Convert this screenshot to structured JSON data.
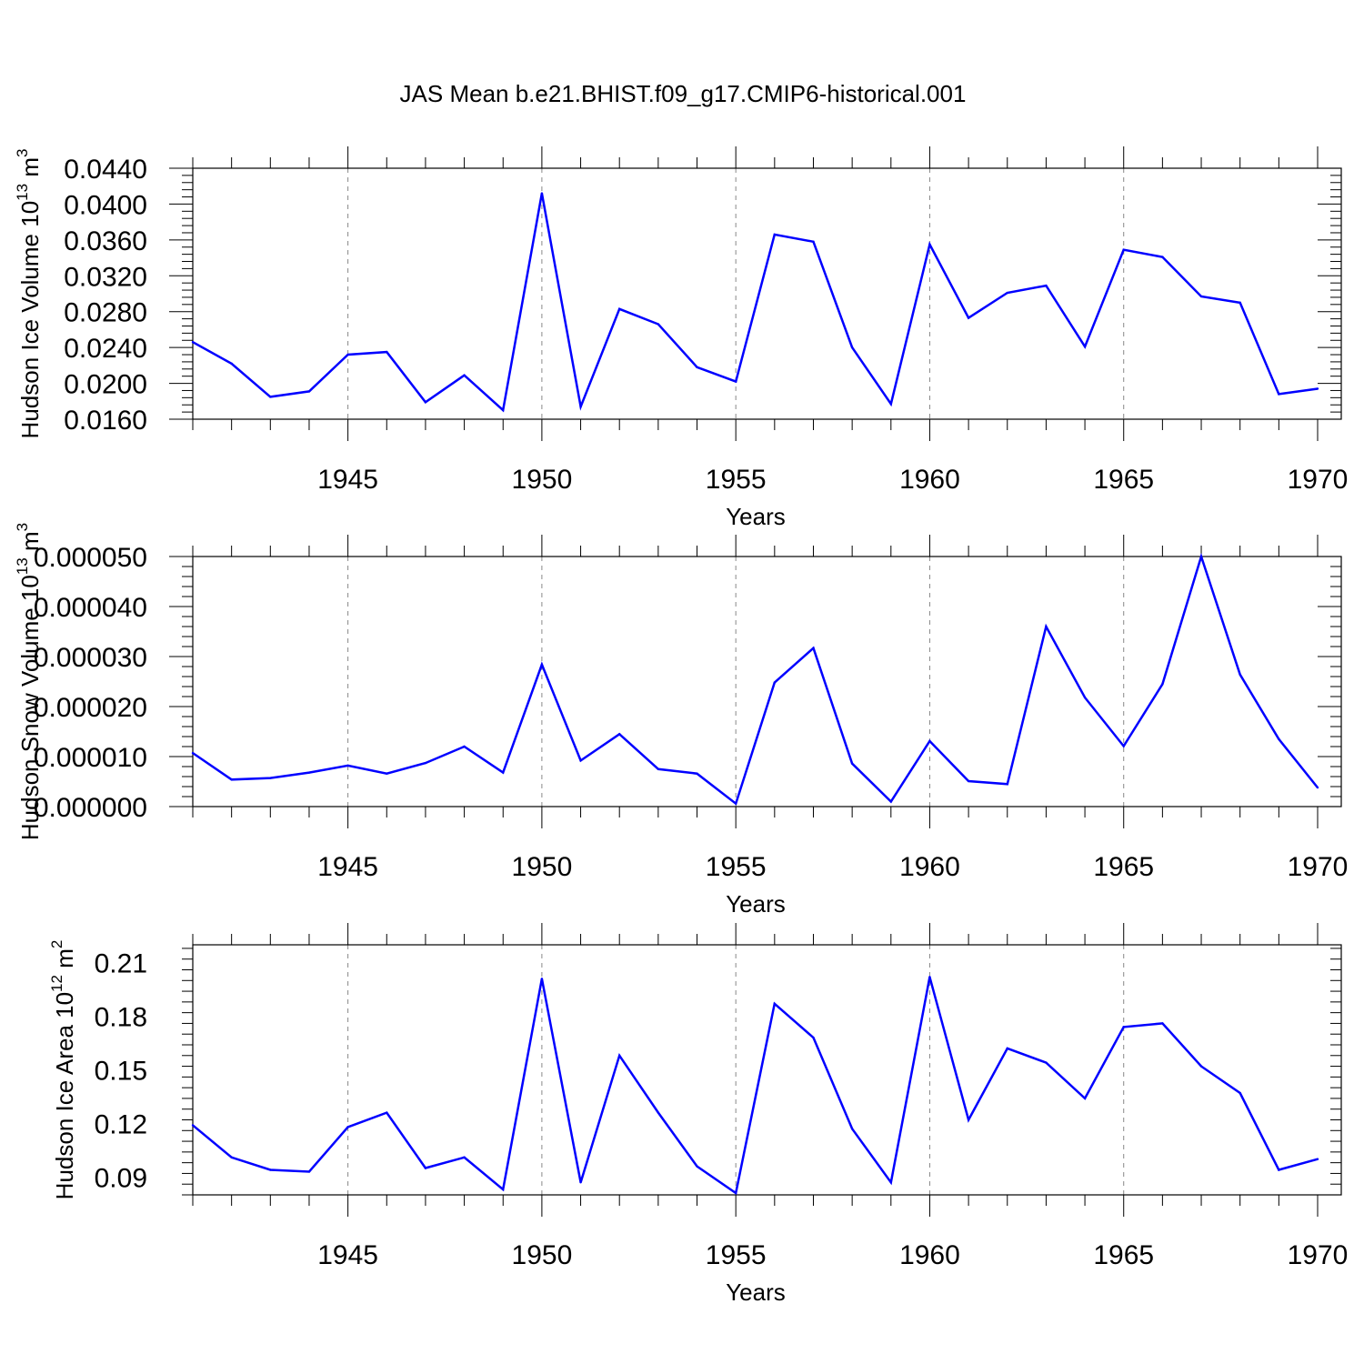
{
  "title": "JAS Mean b.e21.BHIST.f09_g17.CMIP6-historical.001",
  "colors": {
    "series": "#0000ff",
    "axis": "#000000",
    "grid": "#888888"
  },
  "chart_data": [
    {
      "type": "line",
      "ylabel": "Hudson Ice Volume 10",
      "ylabel_sup": "13",
      "ylabel_unit": "m",
      "ylabel_unit_sup": "3",
      "xlabel": "Years",
      "xlim": [
        1941,
        1970
      ],
      "ylim": [
        0.016,
        0.044
      ],
      "yticks": [
        0.016,
        0.02,
        0.024,
        0.028,
        0.032,
        0.036,
        0.04,
        0.044
      ],
      "ytick_labels": [
        "0.0160",
        "0.0200",
        "0.0240",
        "0.0280",
        "0.0320",
        "0.0360",
        "0.0400",
        "0.0440"
      ],
      "xticks": [
        1945,
        1950,
        1955,
        1960,
        1965,
        1970
      ],
      "xtick_labels": [
        "1945",
        "1950",
        "1955",
        "1960",
        "1965",
        "1970"
      ],
      "grid": "vertical dashed at major x ticks",
      "x": [
        1941,
        1942,
        1943,
        1944,
        1945,
        1946,
        1947,
        1948,
        1949,
        1950,
        1951,
        1952,
        1953,
        1954,
        1955,
        1956,
        1957,
        1958,
        1959,
        1960,
        1961,
        1962,
        1963,
        1964,
        1965,
        1966,
        1967,
        1968,
        1969,
        1970
      ],
      "y": [
        0.0246,
        0.0222,
        0.0185,
        0.0191,
        0.0232,
        0.0235,
        0.0179,
        0.0209,
        0.017,
        0.0412,
        0.0174,
        0.0283,
        0.0266,
        0.0218,
        0.0202,
        0.0366,
        0.0358,
        0.024,
        0.0177,
        0.0355,
        0.0273,
        0.0301,
        0.0309,
        0.0241,
        0.0349,
        0.0341,
        0.0297,
        0.029,
        0.0188,
        0.0194
      ]
    },
    {
      "type": "line",
      "ylabel": "Hudson Snow Volume 10",
      "ylabel_sup": "13",
      "ylabel_unit": "m",
      "ylabel_unit_sup": "3",
      "xlabel": "Years",
      "xlim": [
        1941,
        1970
      ],
      "ylim": [
        0.0,
        5e-05
      ],
      "yticks": [
        0.0,
        1e-05,
        2e-05,
        3e-05,
        4e-05,
        5e-05
      ],
      "ytick_labels": [
        "0.000000",
        "0.000010",
        "0.000020",
        "0.000030",
        "0.000040",
        "0.000050"
      ],
      "xticks": [
        1945,
        1950,
        1955,
        1960,
        1965,
        1970
      ],
      "xtick_labels": [
        "1945",
        "1950",
        "1955",
        "1960",
        "1965",
        "1970"
      ],
      "grid": "vertical dashed at major x ticks",
      "x": [
        1941,
        1942,
        1943,
        1944,
        1945,
        1946,
        1947,
        1948,
        1949,
        1950,
        1951,
        1952,
        1953,
        1954,
        1955,
        1956,
        1957,
        1958,
        1959,
        1960,
        1961,
        1962,
        1963,
        1964,
        1965,
        1966,
        1967,
        1968,
        1969,
        1970
      ],
      "y": [
        1.07e-05,
        5.4e-06,
        5.7e-06,
        6.8e-06,
        8.2e-06,
        6.6e-06,
        8.7e-06,
        1.2e-05,
        6.8e-06,
        2.84e-05,
        9.2e-06,
        1.45e-05,
        7.5e-06,
        6.6e-06,
        6e-07,
        2.48e-05,
        3.17e-05,
        8.6e-06,
        1e-06,
        1.31e-05,
        5.1e-06,
        4.5e-06,
        3.6e-05,
        2.18e-05,
        1.21e-05,
        2.45e-05,
        5e-05,
        2.64e-05,
        1.35e-05,
        3.8e-06
      ]
    },
    {
      "type": "line",
      "ylabel": "Hudson Ice Area 10",
      "ylabel_sup": "12",
      "ylabel_unit": "m",
      "ylabel_unit_sup": "2",
      "xlabel": "Years",
      "xlim": [
        1941,
        1970
      ],
      "ylim": [
        0.08,
        0.22
      ],
      "yticks": [
        0.09,
        0.12,
        0.15,
        0.18,
        0.21
      ],
      "ytick_labels": [
        "0.09",
        "0.12",
        "0.15",
        "0.18",
        "0.21"
      ],
      "xticks": [
        1945,
        1950,
        1955,
        1960,
        1965,
        1970
      ],
      "xtick_labels": [
        "1945",
        "1950",
        "1955",
        "1960",
        "1965",
        "1970"
      ],
      "grid": "vertical dashed at major x ticks",
      "x": [
        1941,
        1942,
        1943,
        1944,
        1945,
        1946,
        1947,
        1948,
        1949,
        1950,
        1951,
        1952,
        1953,
        1954,
        1955,
        1956,
        1957,
        1958,
        1959,
        1960,
        1961,
        1962,
        1963,
        1964,
        1965,
        1966,
        1967,
        1968,
        1969,
        1970
      ],
      "y": [
        0.119,
        0.101,
        0.094,
        0.093,
        0.118,
        0.126,
        0.095,
        0.101,
        0.083,
        0.201,
        0.087,
        0.158,
        0.126,
        0.096,
        0.081,
        0.187,
        0.168,
        0.117,
        0.087,
        0.202,
        0.122,
        0.162,
        0.154,
        0.134,
        0.174,
        0.176,
        0.152,
        0.137,
        0.094,
        0.1
      ]
    }
  ]
}
